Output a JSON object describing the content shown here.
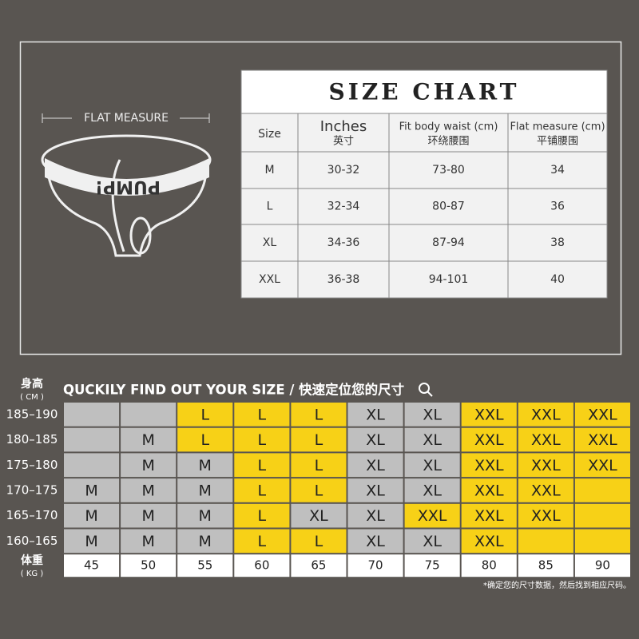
{
  "flat_measure": "FLAT  MEASURE",
  "brand": "PUMP!",
  "size_chart": {
    "title": "SIZE CHART",
    "header": [
      {
        "en": "Size"
      },
      {
        "en": "Inches",
        "zh": "英寸"
      },
      {
        "en": "Fit body waist (cm)",
        "zh": "环绕腰围"
      },
      {
        "en": "Flat measure (cm)",
        "zh": "平铺腰围"
      }
    ],
    "rows": [
      [
        "M",
        "30-32",
        "73-80",
        "34"
      ],
      [
        "L",
        "32-34",
        "80-87",
        "36"
      ],
      [
        "XL",
        "34-36",
        "87-94",
        "38"
      ],
      [
        "XXL",
        "36-38",
        "94-101",
        "40"
      ]
    ]
  },
  "finder": {
    "height_label": "身高",
    "height_unit": "( CM )",
    "title": "QUCKILY FIND OUT YOUR SIZE / 快速定位您的尺寸",
    "weight_label": "体重",
    "weight_unit": "( KG )",
    "weights": [
      "45",
      "50",
      "55",
      "60",
      "65",
      "70",
      "75",
      "80",
      "85",
      "90"
    ],
    "rows": [
      {
        "height": "185–190",
        "sizes": [
          null,
          null,
          "L",
          "L",
          "L",
          "XL",
          "XL",
          "XXL",
          "XXL",
          "XXL"
        ],
        "colors": [
          "#bfbfbf",
          "#bfbfbf",
          "#f7d117",
          "#f7d117",
          "#f7d117",
          "#bfbfbf",
          "#bfbfbf",
          "#f7d117",
          "#f7d117",
          "#f7d117"
        ]
      },
      {
        "height": "180–185",
        "sizes": [
          null,
          "M",
          "L",
          "L",
          "L",
          "XL",
          "XL",
          "XXL",
          "XXL",
          "XXL"
        ],
        "colors": [
          "#bfbfbf",
          "#bfbfbf",
          "#f7d117",
          "#f7d117",
          "#f7d117",
          "#bfbfbf",
          "#bfbfbf",
          "#f7d117",
          "#f7d117",
          "#f7d117"
        ]
      },
      {
        "height": "175–180",
        "sizes": [
          null,
          "M",
          "M",
          "L",
          "L",
          "XL",
          "XL",
          "XXL",
          "XXL",
          "XXL"
        ],
        "colors": [
          "#bfbfbf",
          "#bfbfbf",
          "#bfbfbf",
          "#f7d117",
          "#f7d117",
          "#bfbfbf",
          "#bfbfbf",
          "#f7d117",
          "#f7d117",
          "#f7d117"
        ]
      },
      {
        "height": "170–175",
        "sizes": [
          "M",
          "M",
          "M",
          "L",
          "L",
          "XL",
          "XL",
          "XXL",
          "XXL",
          null
        ],
        "colors": [
          "#bfbfbf",
          "#bfbfbf",
          "#bfbfbf",
          "#f7d117",
          "#f7d117",
          "#bfbfbf",
          "#bfbfbf",
          "#f7d117",
          "#f7d117",
          "#f7d117"
        ]
      },
      {
        "height": "165–170",
        "sizes": [
          "M",
          "M",
          "M",
          "L",
          "XL",
          "XL",
          "XXL",
          "XXL",
          "XXL",
          null
        ],
        "colors": [
          "#bfbfbf",
          "#bfbfbf",
          "#bfbfbf",
          "#f7d117",
          "#bfbfbf",
          "#bfbfbf",
          "#f7d117",
          "#f7d117",
          "#f7d117",
          "#f7d117"
        ]
      },
      {
        "height": "160–165",
        "sizes": [
          "M",
          "M",
          "M",
          "L",
          "L",
          "XL",
          "XL",
          "XXL",
          null,
          null
        ],
        "colors": [
          "#bfbfbf",
          "#bfbfbf",
          "#bfbfbf",
          "#f7d117",
          "#f7d117",
          "#bfbfbf",
          "#bfbfbf",
          "#f7d117",
          "#f7d117",
          "#f7d117"
        ]
      }
    ],
    "note": "*确定您的尺寸数据，然后找到相应尺码。"
  }
}
